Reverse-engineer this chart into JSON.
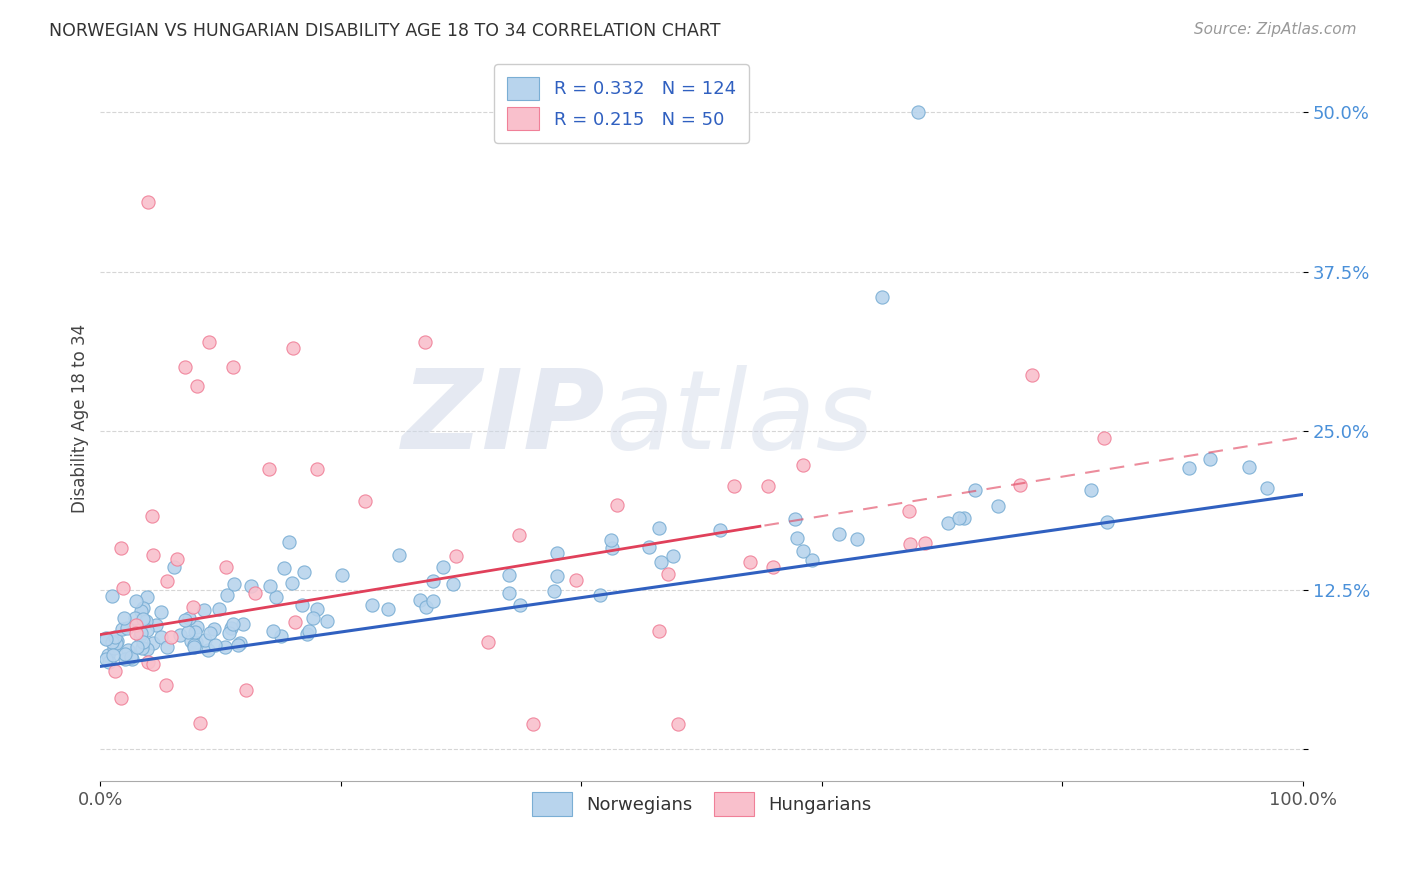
{
  "title": "NORWEGIAN VS HUNGARIAN DISABILITY AGE 18 TO 34 CORRELATION CHART",
  "source": "Source: ZipAtlas.com",
  "ylabel": "Disability Age 18 to 34",
  "xlim": [
    0.0,
    1.0
  ],
  "ylim": [
    -0.025,
    0.545
  ],
  "yticks": [
    0.0,
    0.125,
    0.25,
    0.375,
    0.5
  ],
  "ytick_labels": [
    "",
    "12.5%",
    "25.0%",
    "37.5%",
    "50.0%"
  ],
  "xtick_labels": [
    "0.0%",
    "100.0%"
  ],
  "norwegian_R": 0.332,
  "norwegian_N": 124,
  "hungarian_R": 0.215,
  "hungarian_N": 50,
  "norwegian_dot_face": "#b8d4ed",
  "norwegian_dot_edge": "#7aaed4",
  "hungarian_dot_face": "#f9c0cc",
  "hungarian_dot_edge": "#f08098",
  "trend_norwegian_color": "#3060c0",
  "trend_hungarian_color": "#e0405a",
  "background_color": "#ffffff",
  "grid_color": "#cccccc",
  "title_color": "#333333",
  "source_color": "#999999",
  "tick_color_y": "#4a90d9",
  "tick_color_x": "#555555"
}
